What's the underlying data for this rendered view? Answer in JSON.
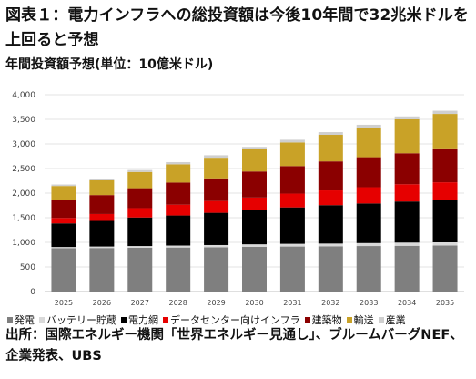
{
  "title": "図表１：電力インフラへの総投資額は今後10年間で32兆米ドルを上回ると予想",
  "source": "出所：国際エネルギー機関「世界エネルギー見通し」、ブルームバーグNEF、企業発表、UBS",
  "chart_data": {
    "type": "bar",
    "stacked": true,
    "title": "年間投資額予想(単位：10億米ドル)",
    "categories": [
      "2025",
      "2026",
      "2027",
      "2028",
      "2029",
      "2030",
      "2031",
      "2032",
      "2033",
      "2034",
      "2035"
    ],
    "ylim": [
      0,
      4000
    ],
    "yticks": [
      0,
      500,
      1000,
      1500,
      2000,
      2500,
      3000,
      3500,
      4000
    ],
    "ytick_labels": [
      "0",
      "500",
      "1,000",
      "1,500",
      "2,000",
      "2,500",
      "3,000",
      "3,500",
      "4,000"
    ],
    "grid": true,
    "legend_position": "bottom",
    "series": [
      {
        "name": "発電",
        "color": "#7f7f7f",
        "values": [
          880,
          885,
          890,
          895,
          900,
          910,
          915,
          920,
          925,
          930,
          935
        ]
      },
      {
        "name": "バッテリー貯蔵",
        "color": "#d9d9d9",
        "values": [
          25,
          30,
          35,
          40,
          45,
          50,
          55,
          55,
          60,
          65,
          65
        ]
      },
      {
        "name": "電力網",
        "color": "#000000",
        "values": [
          480,
          520,
          580,
          610,
          655,
          690,
          740,
          780,
          805,
          835,
          860
        ]
      },
      {
        "name": "データセンター向けインフラ",
        "color": "#e60000",
        "values": [
          110,
          140,
          190,
          220,
          240,
          260,
          280,
          300,
          330,
          350,
          360
        ]
      },
      {
        "name": "建築物",
        "color": "#8b0000",
        "values": [
          370,
          385,
          405,
          450,
          460,
          530,
          560,
          590,
          610,
          630,
          690
        ]
      },
      {
        "name": "輸送",
        "color": "#c9a227",
        "values": [
          280,
          300,
          330,
          370,
          420,
          450,
          480,
          540,
          600,
          690,
          700
        ]
      },
      {
        "name": "産業",
        "color": "#cfcfcf",
        "values": [
          30,
          35,
          40,
          45,
          50,
          50,
          55,
          55,
          60,
          60,
          65
        ]
      }
    ]
  }
}
